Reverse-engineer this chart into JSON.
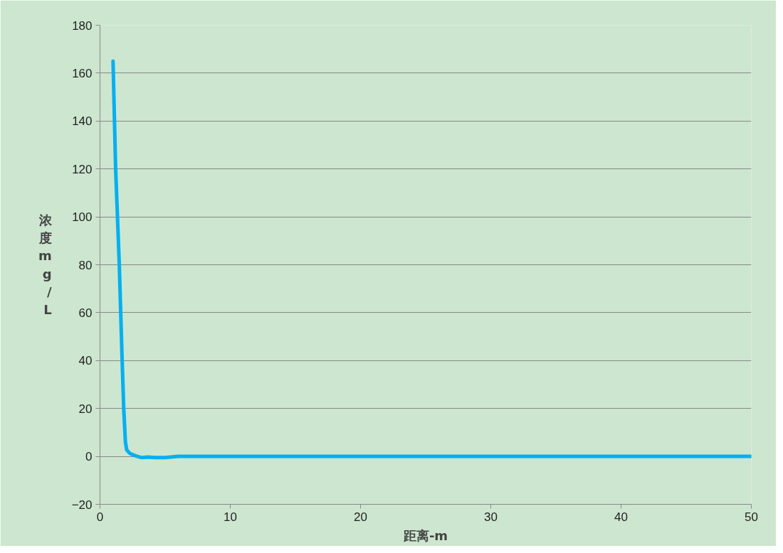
{
  "chart_data": {
    "type": "line",
    "xlabel": "距离-m",
    "ylabel": "浓度mg/L",
    "x": [
      1,
      1.2,
      1.48,
      1.7,
      1.82,
      1.95,
      2.05,
      2.3,
      2.7,
      3.2,
      3.7,
      4.2,
      5,
      6,
      10,
      20,
      30,
      40,
      50
    ],
    "values": [
      165,
      120,
      80,
      40,
      20,
      6,
      2.7,
      1.2,
      0.3,
      -0.5,
      -0.3,
      -0.5,
      -0.5,
      0,
      0,
      0,
      0,
      0,
      0
    ],
    "color": "#00b0f0",
    "xlim": [
      0,
      50
    ],
    "ylim": [
      -20,
      180
    ],
    "xticks": [
      0,
      10,
      20,
      30,
      40,
      50
    ],
    "yticks": [
      -20,
      0,
      20,
      40,
      60,
      80,
      100,
      120,
      140,
      160,
      180
    ],
    "grid": "y",
    "marker": "none",
    "line_style": "solid"
  }
}
